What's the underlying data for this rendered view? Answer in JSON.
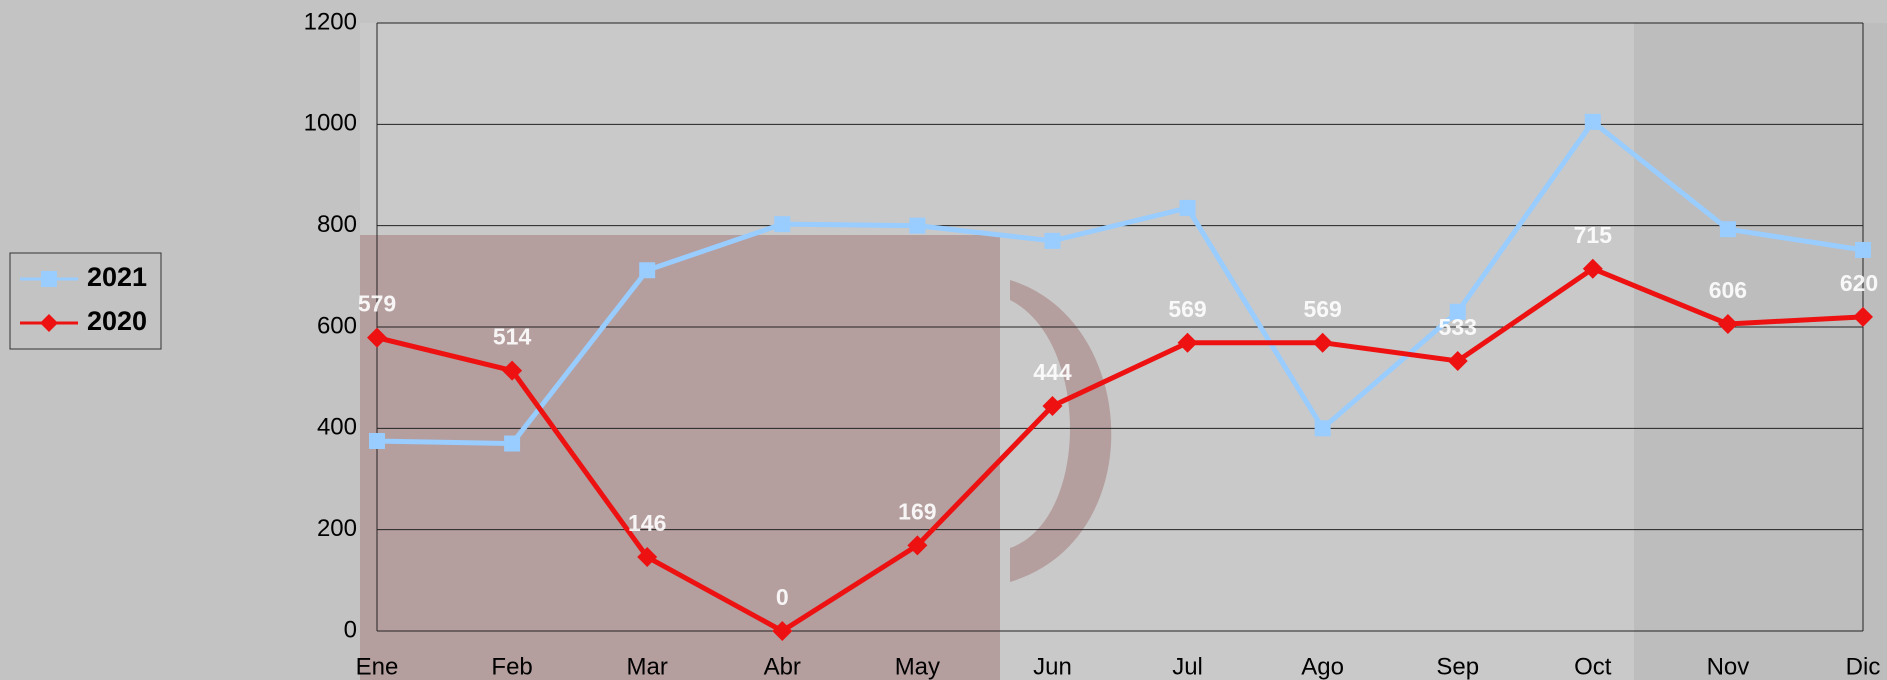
{
  "chart_data": {
    "type": "line",
    "categories": [
      "Ene",
      "Feb",
      "Mar",
      "Abr",
      "May",
      "Jun",
      "Jul",
      "Ago",
      "Sep",
      "Oct",
      "Nov",
      "Dic"
    ],
    "series": [
      {
        "name": "2021",
        "color": "#99ccff",
        "marker": "square",
        "values": [
          375,
          370,
          712,
          803,
          800,
          770,
          835,
          400,
          630,
          1005,
          793,
          752
        ]
      },
      {
        "name": "2020",
        "color": "#ee1111",
        "marker": "diamond",
        "data_labels": true,
        "values": [
          579,
          514,
          146,
          0,
          169,
          444,
          569,
          569,
          533,
          715,
          606,
          620
        ]
      }
    ],
    "ylim": [
      0,
      1200
    ],
    "yticks": [
      0,
      200,
      400,
      600,
      800,
      1000,
      1200
    ],
    "grid": true,
    "legend": "left"
  }
}
